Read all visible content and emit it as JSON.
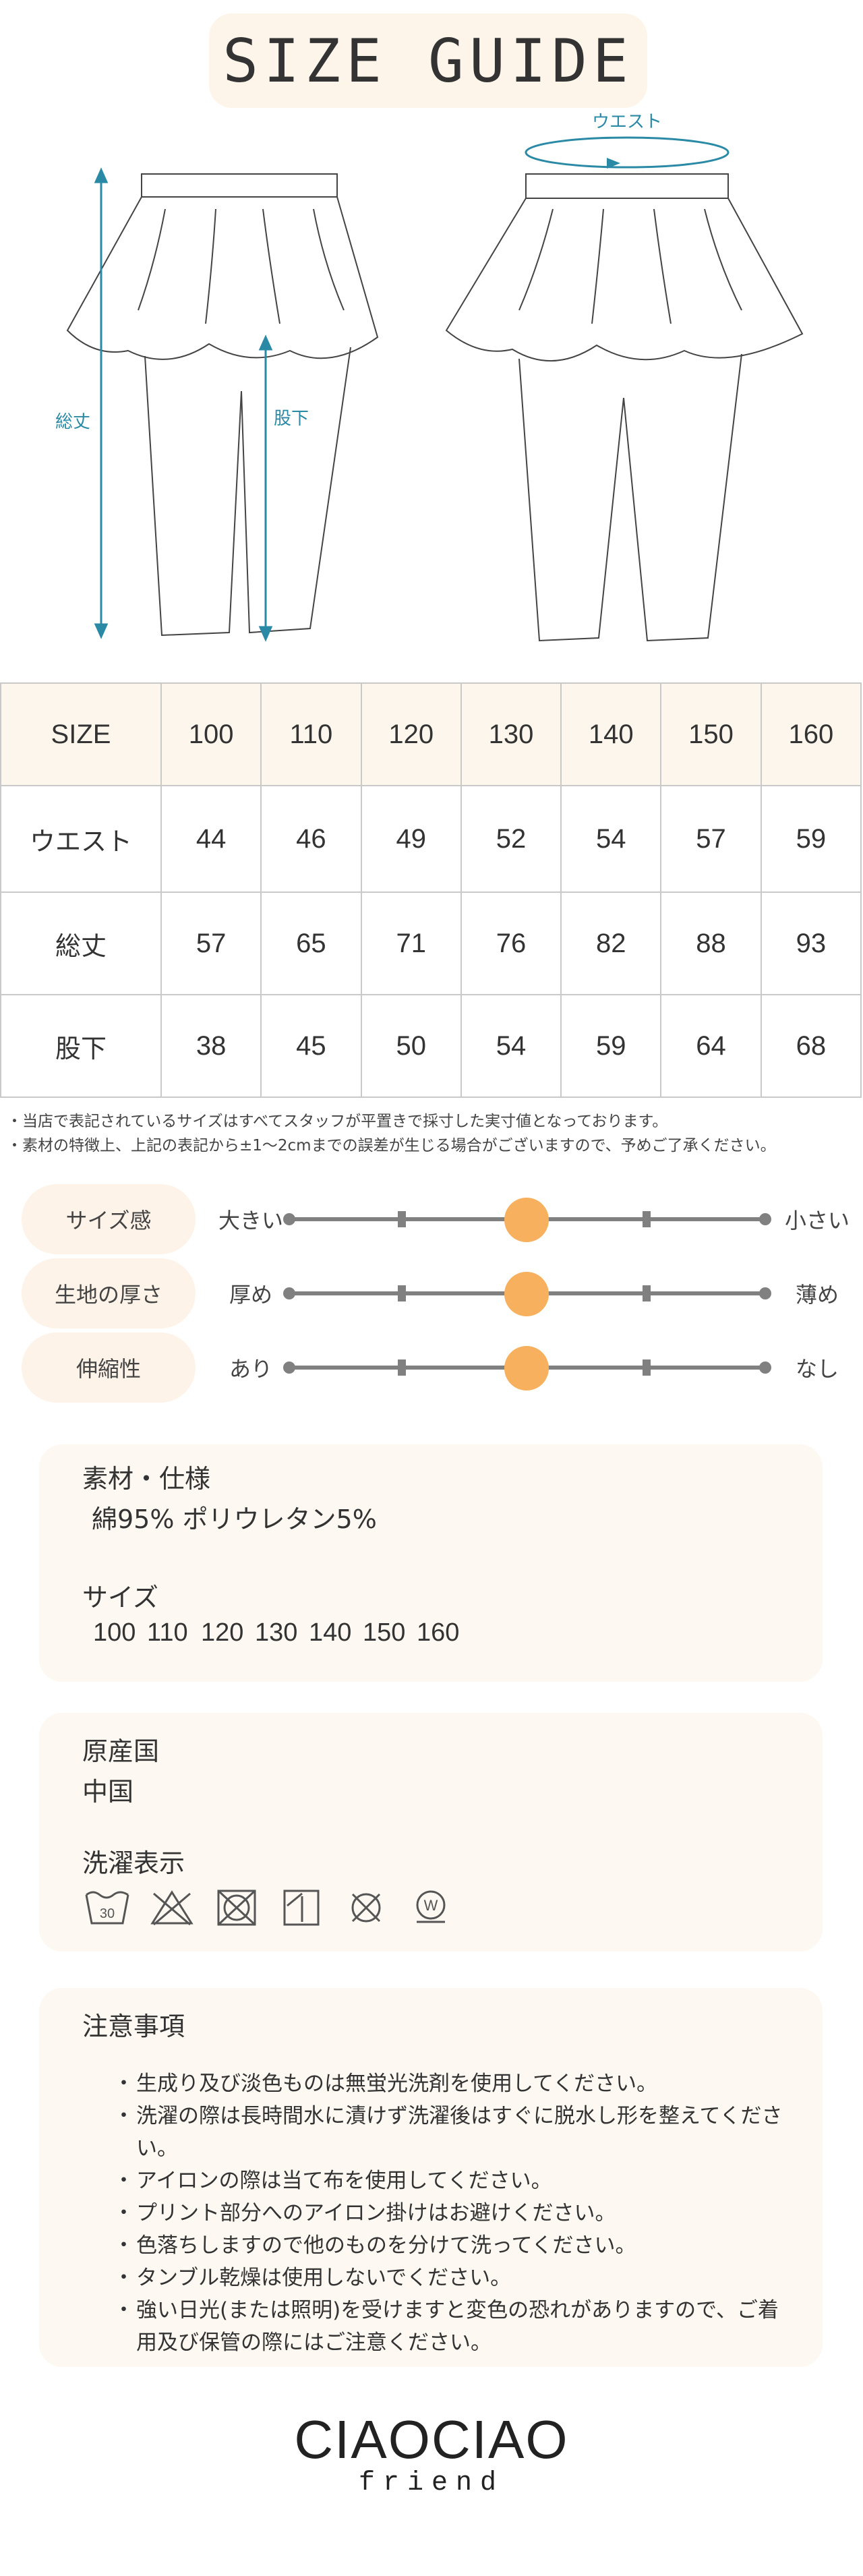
{
  "title": "SIZE GUIDE",
  "diagram": {
    "front_labels": {
      "total_length": "総丈",
      "inseam": "股下"
    },
    "back_labels": {
      "waist": "ウエスト"
    }
  },
  "table": {
    "header_label": "SIZE",
    "sizes": [
      "100",
      "110",
      "120",
      "130",
      "140",
      "150",
      "160"
    ],
    "rows": [
      {
        "label": "ウエスト",
        "values": [
          "44",
          "46",
          "49",
          "52",
          "54",
          "57",
          "59"
        ]
      },
      {
        "label": "総丈",
        "values": [
          "57",
          "65",
          "71",
          "76",
          "82",
          "88",
          "93"
        ]
      },
      {
        "label": "股下",
        "values": [
          "38",
          "45",
          "50",
          "54",
          "59",
          "64",
          "68"
        ]
      }
    ]
  },
  "notes": [
    "・当店で表記されているサイズはすべてスタッフが平置きで採寸した実寸値となっております。",
    "・素材の特徴上、上記の表記から±1〜2cmまでの誤差が生じる場合がございますので、予めご了承ください。"
  ],
  "feel": [
    {
      "label": "サイズ感",
      "left": "大きい",
      "right": "小さい",
      "level": 0.5
    },
    {
      "label": "生地の厚さ",
      "left": "厚め",
      "right": "薄め",
      "level": 0.5
    },
    {
      "label": "伸縮性",
      "left": "あり",
      "right": "なし",
      "level": 0.5
    }
  ],
  "material": {
    "heading": "素材・仕様",
    "value": "綿95%  ポリウレタン5%",
    "size_heading": "サイズ",
    "sizes": [
      "100",
      "110",
      "120",
      "130",
      "140",
      "150",
      "160"
    ]
  },
  "origin": {
    "heading": "原産国",
    "value": "中国",
    "care_heading": "洗濯表示",
    "care_icons": [
      "wash-30-icon",
      "no-bleach-icon",
      "no-tumble-dry-icon",
      "line-dry-icon",
      "no-dry-clean-icon",
      "wet-clean-icon"
    ],
    "wash_temp": "30",
    "wet_letter": "W"
  },
  "caution": {
    "heading": "注意事項",
    "items": [
      "生成り及び淡色ものは無蛍光洗剤を使用してください。",
      "洗濯の際は長時間水に漬けず洗濯後はすぐに脱水し形を整えてください。",
      "アイロンの際は当て布を使用してください。",
      "プリント部分へのアイロン掛けはお避けください。",
      "色落ちしますので他のものを分けて洗ってください。",
      "タンブル乾燥は使用しないでください。",
      "強い日光(または照明)を受けますと変色の恐れがありますので、ご着用及び保管の際にはご注意ください。"
    ]
  },
  "logo": {
    "main": "CIAOCIAO",
    "sub": "friend"
  },
  "colors": {
    "accent": "#f6b05e",
    "label_bg": "#fdf3e8",
    "dimension": "#2a8aa6"
  }
}
